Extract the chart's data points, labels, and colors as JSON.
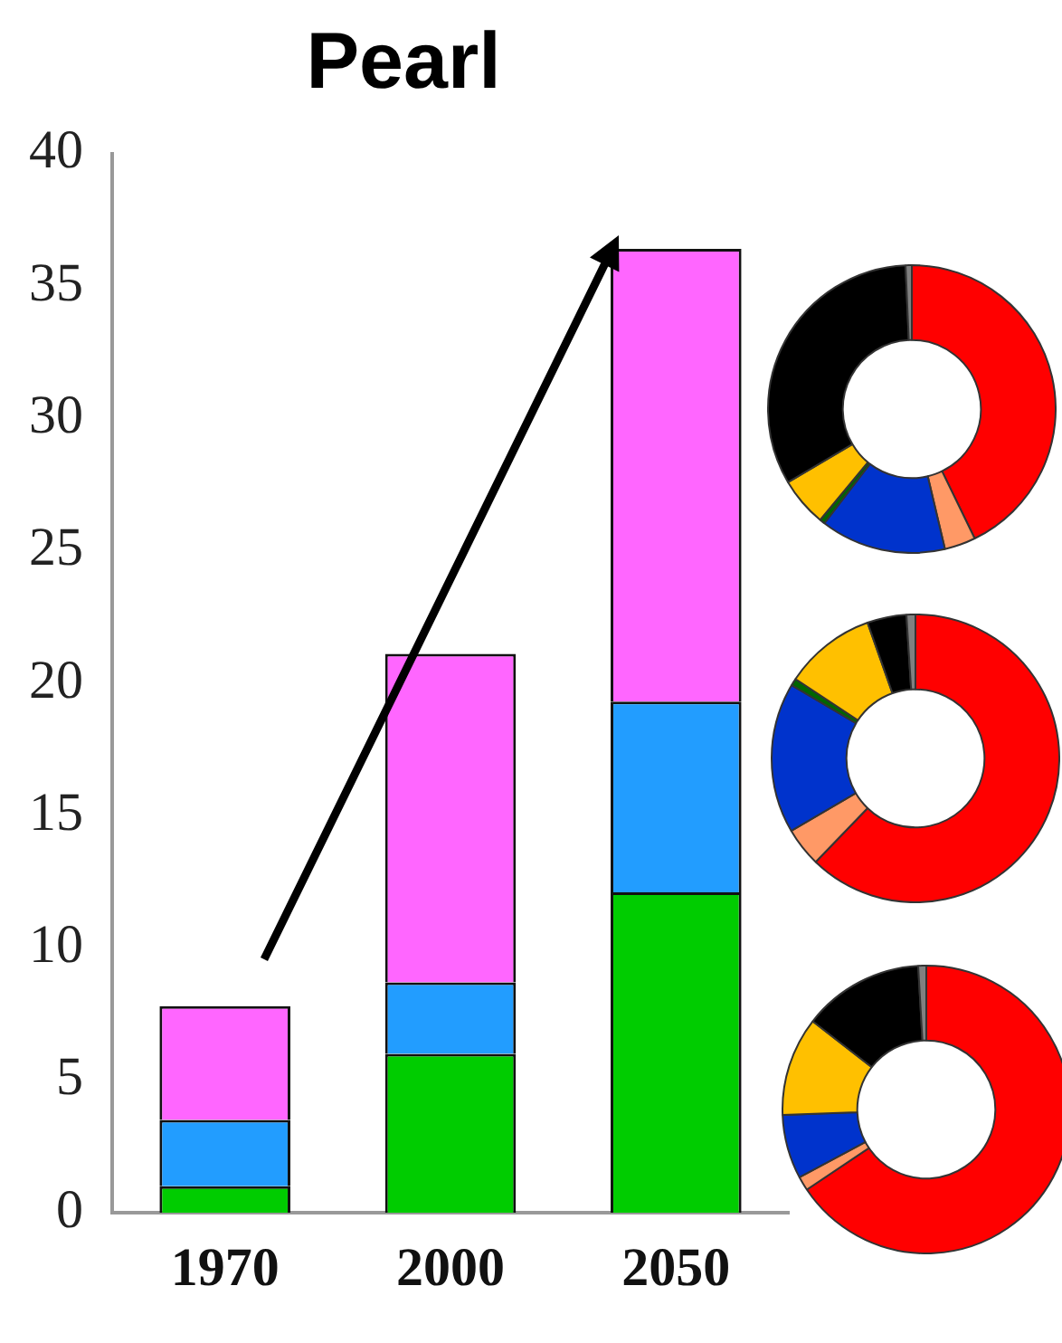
{
  "chart_data": [
    {
      "type": "bar",
      "title": "Pearl",
      "categories": [
        "1970",
        "2000",
        "2050"
      ],
      "stacked": true,
      "ylim": [
        0,
        40
      ],
      "yticks": [
        0,
        5,
        10,
        15,
        20,
        25,
        30,
        35,
        40
      ],
      "grid": false,
      "legend": false,
      "series": [
        {
          "color": "#00cc00",
          "values": [
            1.0,
            6.0,
            12.1
          ]
        },
        {
          "color": "#229dff",
          "values": [
            2.5,
            2.7,
            7.2
          ]
        },
        {
          "color": "#ff66ff",
          "values": [
            4.3,
            12.4,
            17.1
          ]
        }
      ]
    },
    {
      "type": "donut",
      "categories": [
        null,
        null,
        null,
        null,
        null,
        null,
        null
      ],
      "values": [
        42.8,
        3.5,
        14.1,
        0.6,
        5.5,
        32.8,
        0.7
      ],
      "colors": [
        "#ff0000",
        "#ff9966",
        "#0033cc",
        "#006600",
        "#ffc000",
        "#000000",
        "#808080"
      ]
    },
    {
      "type": "donut",
      "categories": [
        null,
        null,
        null,
        null,
        null,
        null,
        null
      ],
      "values": [
        62.2,
        4.4,
        16.9,
        0.8,
        10.3,
        4.4,
        1.0
      ],
      "colors": [
        "#ff0000",
        "#ff9966",
        "#0033cc",
        "#006600",
        "#ffc000",
        "#000000",
        "#808080"
      ]
    },
    {
      "type": "donut",
      "categories": [
        null,
        null,
        null,
        null,
        null,
        null
      ],
      "values": [
        65.6,
        1.6,
        7.2,
        11.1,
        13.6,
        0.9
      ],
      "colors": [
        "#ff0000",
        "#ff9966",
        "#0033cc",
        "#ffc000",
        "#000000",
        "#808080"
      ]
    }
  ]
}
